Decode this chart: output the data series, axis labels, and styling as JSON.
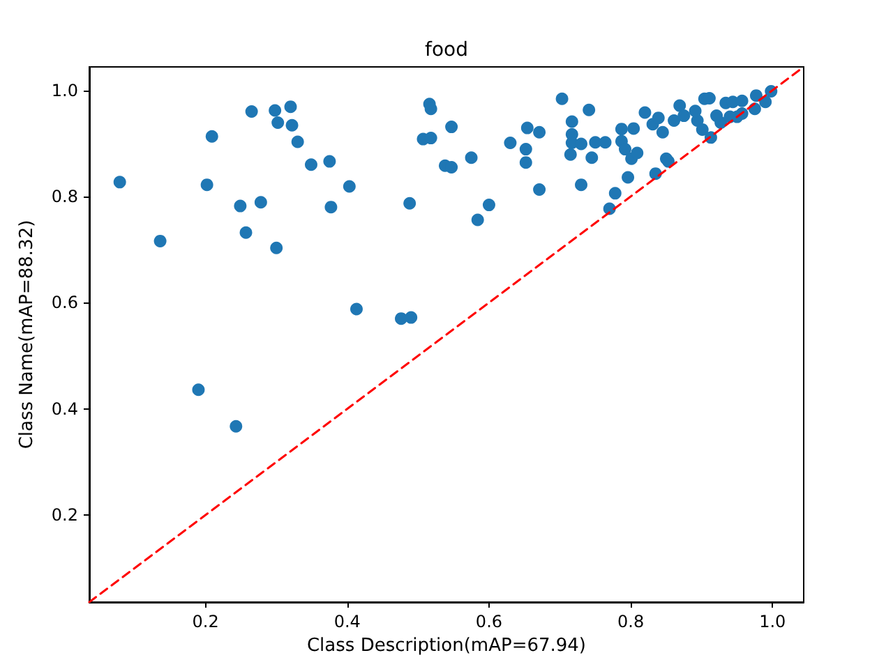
{
  "chart_data": {
    "type": "scatter",
    "title": "food",
    "xlabel": "Class Description(mAP=67.94)",
    "ylabel": "Class Name(mAP=88.32)",
    "xlim": [
      0.036,
      1.044
    ],
    "ylim": [
      0.036,
      1.044
    ],
    "xticks": [
      0.2,
      0.4,
      0.6,
      0.8,
      {
        "value": 1,
        "label": "1.0"
      }
    ],
    "yticks": [
      0.2,
      0.4,
      0.6,
      0.8,
      {
        "value": 1,
        "label": "1.0"
      }
    ],
    "grid": false,
    "marker": "circle",
    "series": [
      {
        "color": "#1f77b4",
        "x": [
          0.079,
          0.136,
          0.202,
          0.209,
          0.249,
          0.257,
          0.265,
          0.278,
          0.298,
          0.3,
          0.302,
          0.32,
          0.322,
          0.33,
          0.349,
          0.375,
          0.377,
          0.403,
          0.19,
          0.243,
          0.413,
          0.476,
          0.49,
          0.488,
          0.516,
          0.518,
          0.507,
          0.518,
          0.547,
          0.538,
          0.547,
          0.575,
          0.584,
          0.6,
          0.63,
          0.654,
          0.652,
          0.652,
          0.671,
          0.671,
          0.703,
          0.717,
          0.717,
          0.717,
          0.715,
          0.73,
          0.741,
          0.745,
          0.73,
          0.75,
          0.764,
          0.77,
          0.778,
          0.787,
          0.787,
          0.792,
          0.796,
          0.804,
          0.801,
          0.809,
          0.82,
          0.831,
          0.839,
          0.835,
          0.85,
          0.853,
          0.869,
          0.904,
          0.911,
          0.934,
          0.944,
          0.957,
          0.977,
          0.998,
          0.99,
          0.975,
          0.95,
          0.913,
          0.927,
          0.894,
          0.901,
          0.891,
          0.845,
          0.861,
          0.875,
          0.921,
          0.94,
          0.957
        ],
        "values": [
          0.827,
          0.716,
          0.822,
          0.913,
          0.782,
          0.732,
          0.96,
          0.789,
          0.962,
          0.703,
          0.939,
          0.969,
          0.934,
          0.903,
          0.86,
          0.866,
          0.78,
          0.819,
          0.436,
          0.367,
          0.588,
          0.57,
          0.572,
          0.787,
          0.974,
          0.965,
          0.908,
          0.91,
          0.931,
          0.858,
          0.855,
          0.873,
          0.756,
          0.784,
          0.901,
          0.929,
          0.889,
          0.864,
          0.921,
          0.813,
          0.984,
          0.941,
          0.917,
          0.901,
          0.879,
          0.899,
          0.963,
          0.873,
          0.822,
          0.902,
          0.902,
          0.777,
          0.806,
          0.927,
          0.904,
          0.889,
          0.836,
          0.928,
          0.871,
          0.882,
          0.958,
          0.936,
          0.948,
          0.843,
          0.871,
          0.866,
          0.971,
          0.984,
          0.985,
          0.976,
          0.978,
          0.98,
          0.99,
          0.998,
          0.978,
          0.965,
          0.95,
          0.911,
          0.939,
          0.943,
          0.926,
          0.961,
          0.921,
          0.943,
          0.952,
          0.952,
          0.95,
          0.956
        ]
      },
      {
        "type": "line",
        "color": "#ff0000",
        "line_style": "dashed",
        "marker": "none",
        "x": [
          0.036,
          1.044
        ],
        "values": [
          0.036,
          1.044
        ]
      }
    ]
  }
}
